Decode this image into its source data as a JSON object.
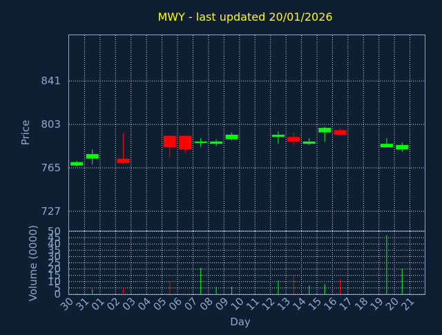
{
  "chart_data": {
    "type": "candlestick",
    "title": "MWY - last updated 20/01/2026",
    "xlabel": "Day",
    "colors": {
      "up": "#00ff00",
      "down": "#ff0000",
      "background": "#0f1f33",
      "frame": "#8fa9c9",
      "title": "#ffff00"
    },
    "categories": [
      "30",
      "31",
      "01",
      "02",
      "03",
      "04",
      "05",
      "06",
      "07",
      "08",
      "09",
      "10",
      "11",
      "12",
      "13",
      "14",
      "15",
      "16",
      "17",
      "18",
      "19",
      "20",
      "21"
    ],
    "price": {
      "ylabel": "Price",
      "yticks": [
        727,
        765,
        803,
        841
      ],
      "ylim": [
        710,
        881
      ],
      "candles": [
        {
          "day": "30",
          "open": 767,
          "close": 770,
          "high": 771,
          "low": 766
        },
        {
          "day": "31",
          "open": 773,
          "close": 777,
          "high": 781,
          "low": 768
        },
        {
          "day": "02",
          "open": 773,
          "close": 769,
          "high": 795,
          "low": 768
        },
        {
          "day": "05",
          "open": 793,
          "close": 783,
          "high": 793,
          "low": 774
        },
        {
          "day": "06",
          "open": 793,
          "close": 781,
          "high": 793,
          "low": 778
        },
        {
          "day": "07",
          "open": 787,
          "close": 788,
          "high": 791,
          "low": 783
        },
        {
          "day": "08",
          "open": 786,
          "close": 788,
          "high": 790,
          "low": 784
        },
        {
          "day": "09",
          "open": 790,
          "close": 794,
          "high": 796,
          "low": 789
        },
        {
          "day": "12",
          "open": 792,
          "close": 794,
          "high": 797,
          "low": 786
        },
        {
          "day": "13",
          "open": 792,
          "close": 788,
          "high": 796,
          "low": 785
        },
        {
          "day": "14",
          "open": 786,
          "close": 788,
          "high": 791,
          "low": 785
        },
        {
          "day": "15",
          "open": 796,
          "close": 800,
          "high": 801,
          "low": 788
        },
        {
          "day": "16",
          "open": 798,
          "close": 794,
          "high": 800,
          "low": 794
        },
        {
          "day": "19",
          "open": 783,
          "close": 786,
          "high": 791,
          "low": 783
        },
        {
          "day": "20",
          "open": 781,
          "close": 785,
          "high": 787,
          "low": 779
        }
      ]
    },
    "volume": {
      "ylabel": "Volume (0000)",
      "yticks": [
        0,
        5,
        10,
        15,
        20,
        25,
        30,
        35,
        40,
        45,
        50
      ],
      "ylim": [
        0,
        50
      ],
      "bars": [
        {
          "day": "30",
          "value": 0.5,
          "dir": "up"
        },
        {
          "day": "31",
          "value": 4,
          "dir": "up"
        },
        {
          "day": "02",
          "value": 5,
          "dir": "down"
        },
        {
          "day": "05",
          "value": 10,
          "dir": "down"
        },
        {
          "day": "06",
          "value": 1,
          "dir": "down"
        },
        {
          "day": "07",
          "value": 21,
          "dir": "up"
        },
        {
          "day": "08",
          "value": 6,
          "dir": "up"
        },
        {
          "day": "09",
          "value": 6,
          "dir": "up"
        },
        {
          "day": "12",
          "value": 11,
          "dir": "up"
        },
        {
          "day": "13",
          "value": 15,
          "dir": "down"
        },
        {
          "day": "14",
          "value": 7,
          "dir": "up"
        },
        {
          "day": "15",
          "value": 8,
          "dir": "up"
        },
        {
          "day": "16",
          "value": 12,
          "dir": "down"
        },
        {
          "day": "19",
          "value": 47,
          "dir": "up"
        },
        {
          "day": "20",
          "value": 20,
          "dir": "up"
        }
      ]
    }
  }
}
